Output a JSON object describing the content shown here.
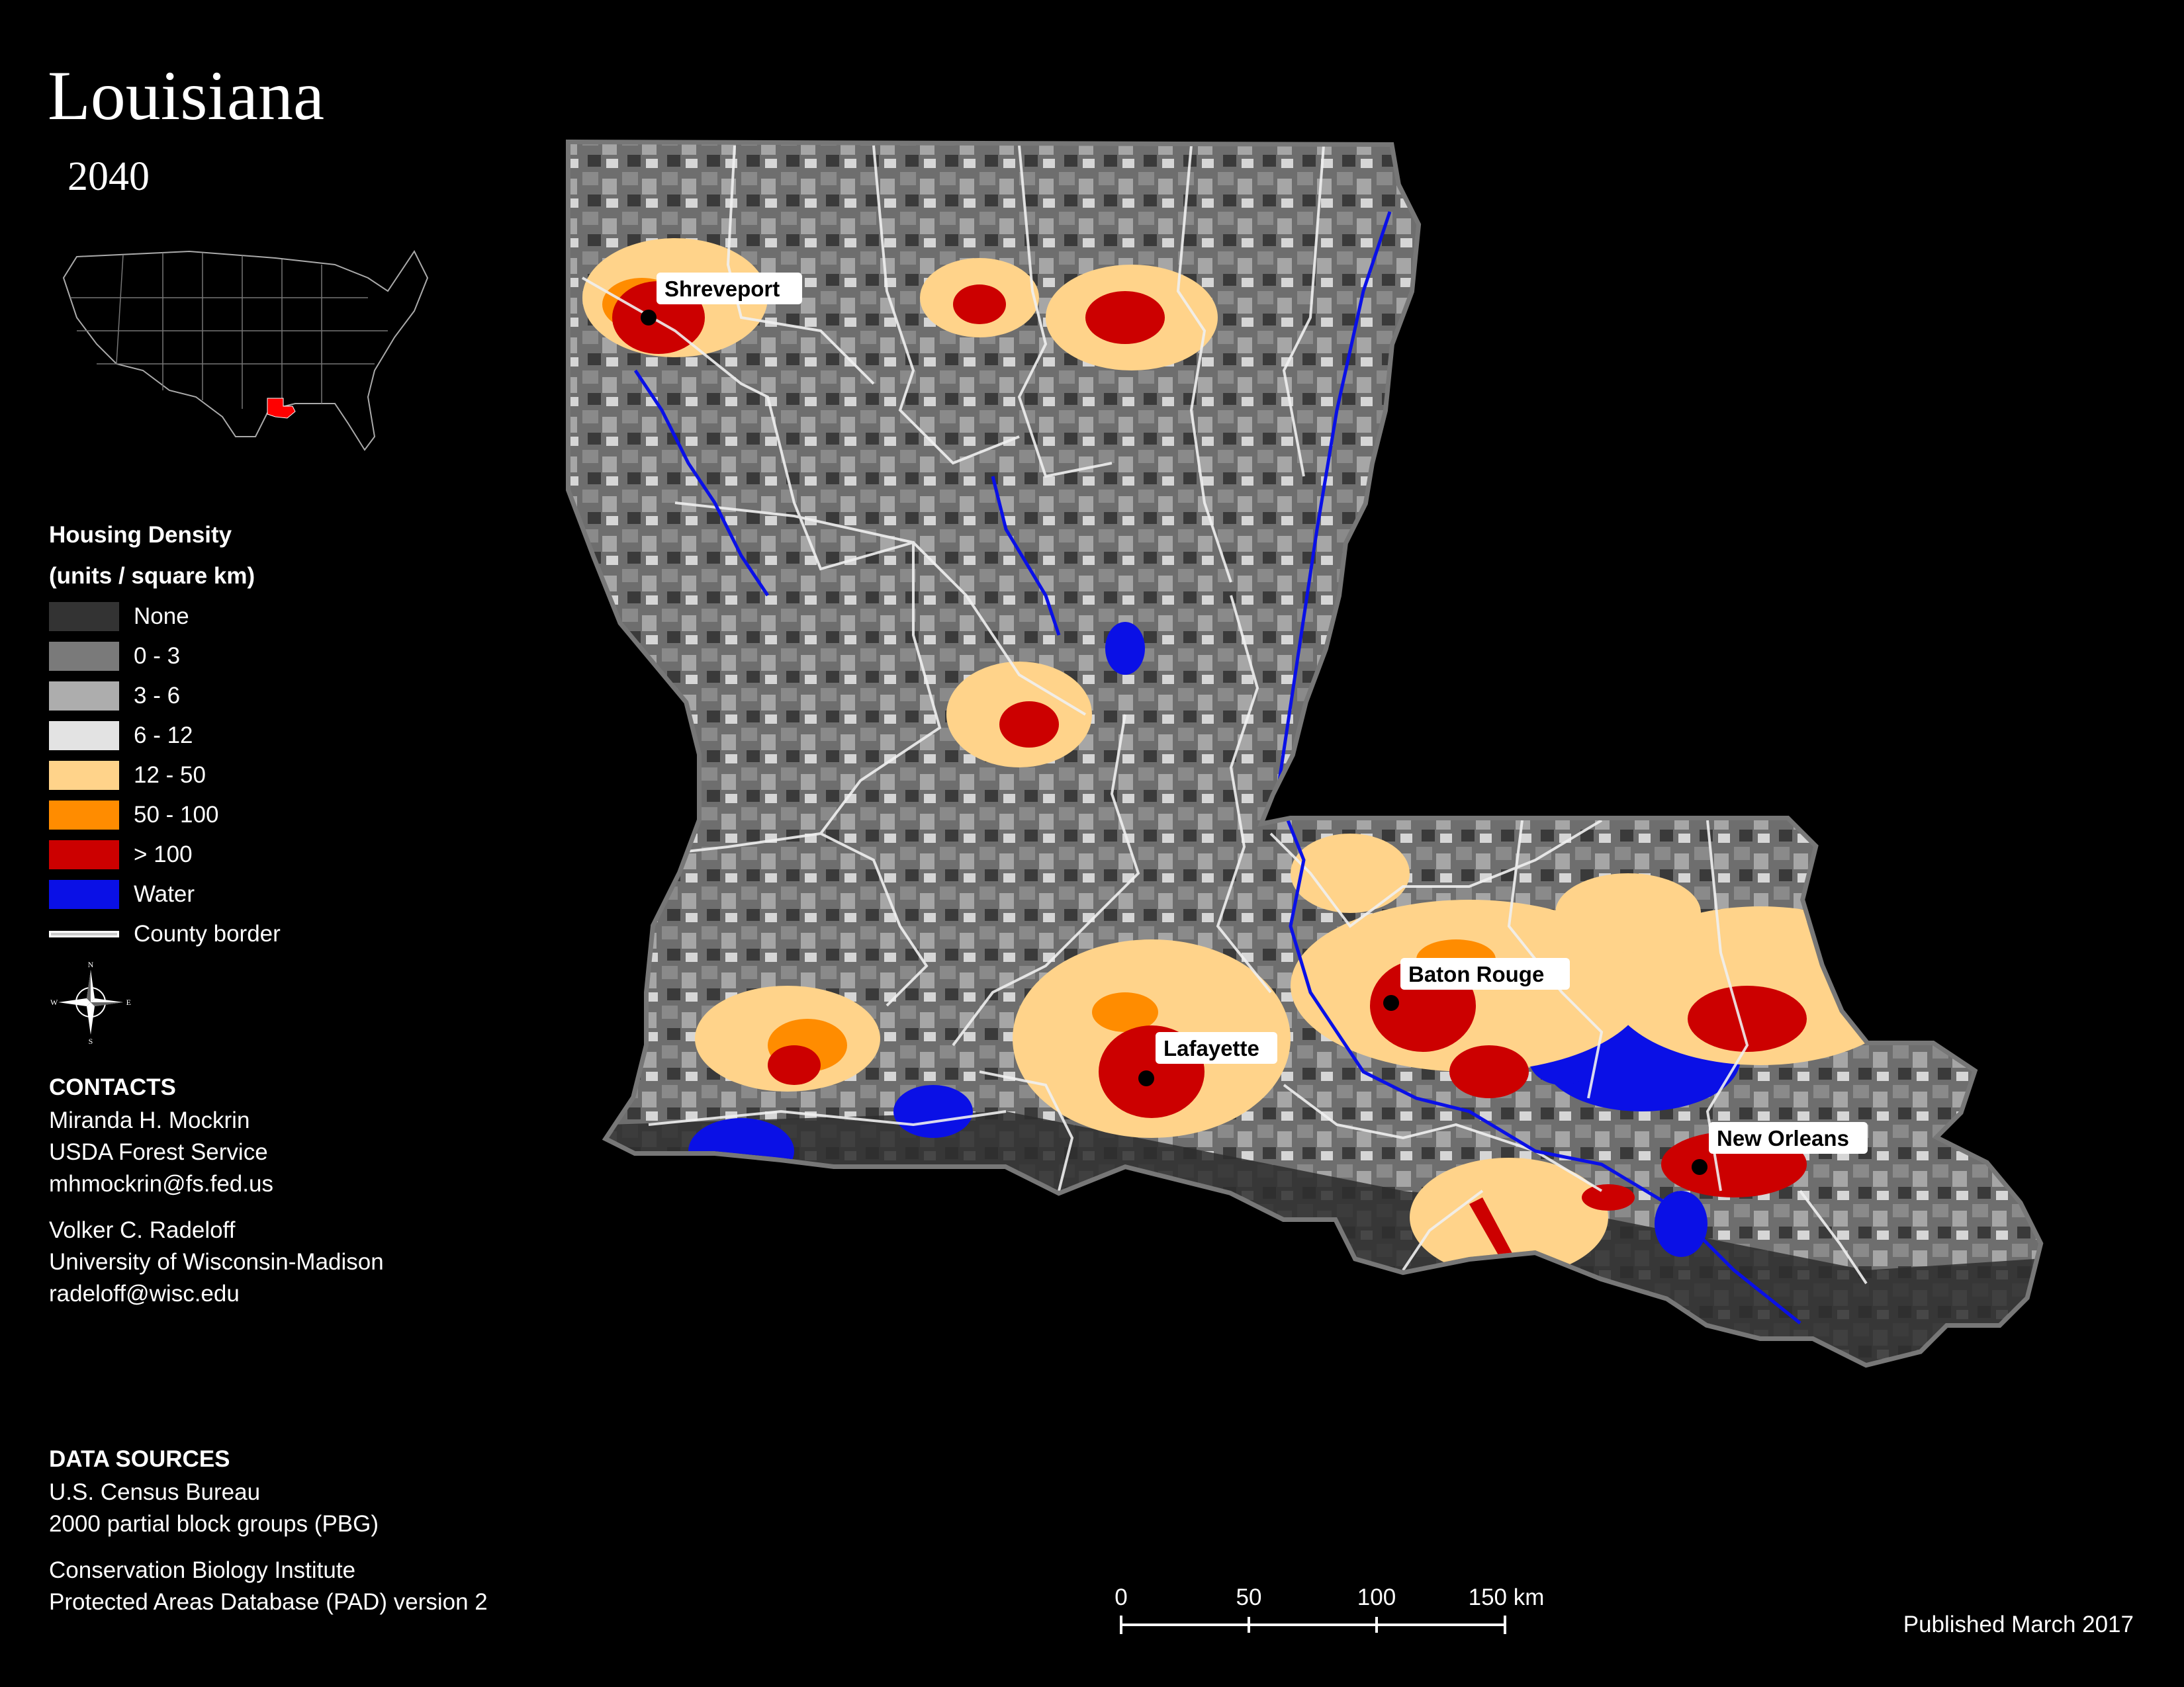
{
  "title": "Louisiana",
  "year": "2040",
  "legend": {
    "title_line1": "Housing Density",
    "title_line2": "(units / square km)",
    "items": [
      {
        "label": "None",
        "color": "#333333"
      },
      {
        "label": "0 - 3",
        "color": "#7a7a7a"
      },
      {
        "label": "3 - 6",
        "color": "#adadad"
      },
      {
        "label": "6 - 12",
        "color": "#e3e3e3"
      },
      {
        "label": "12 - 50",
        "color": "#ffd38a"
      },
      {
        "label": "50 - 100",
        "color": "#ff8c00"
      },
      {
        "label": "> 100",
        "color": "#cc0000"
      },
      {
        "label": "Water",
        "color": "#0a10e6"
      }
    ],
    "county_border_label": "County border"
  },
  "compass": {
    "n": "N",
    "s": "S",
    "e": "E",
    "w": "W"
  },
  "contacts": {
    "heading": "CONTACTS",
    "person1": {
      "name": "Miranda H. Mockrin",
      "org": "USDA Forest Service",
      "email": "mhmockrin@fs.fed.us"
    },
    "person2": {
      "name": "Volker C. Radeloff",
      "org": "University of Wisconsin-Madison",
      "email": "radeloff@wisc.edu"
    }
  },
  "data_sources": {
    "heading": "DATA SOURCES",
    "line1": "U.S. Census Bureau",
    "line2": "2000 partial block groups (PBG)",
    "line3": "Conservation Biology Institute",
    "line4": "Protected Areas Database (PAD) version 2"
  },
  "scale_bar": {
    "ticks": [
      "0",
      "50",
      "100",
      "150 km"
    ]
  },
  "published": "Published March 2017",
  "cities": [
    {
      "name": "Shreveport"
    },
    {
      "name": "Baton Rouge"
    },
    {
      "name": "Lafayette"
    },
    {
      "name": "New Orleans"
    }
  ],
  "inset": {
    "highlight_color": "#ff0000"
  }
}
